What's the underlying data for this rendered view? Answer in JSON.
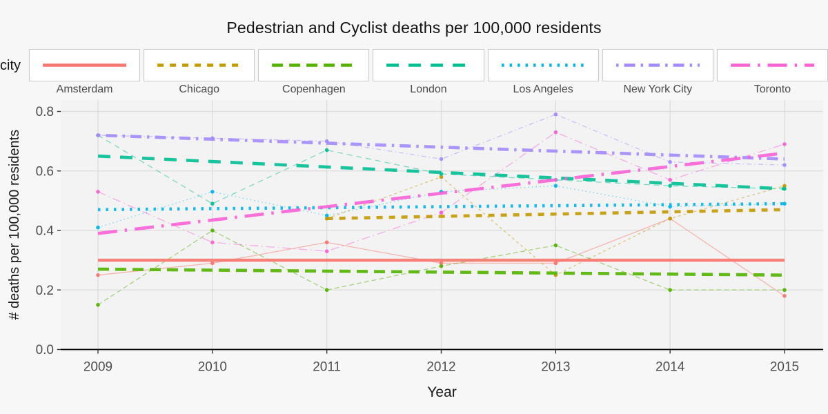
{
  "title": "Pedestrian and Cyclist deaths per 100,000 residents",
  "legend": {
    "label": "city",
    "position": "top"
  },
  "chart_data": {
    "type": "line",
    "x": [
      2009,
      2010,
      2011,
      2012,
      2013,
      2014,
      2015
    ],
    "xlabel": "Year",
    "ylabel": "# deaths per 100,000 residents",
    "ylim": [
      0.0,
      0.8
    ],
    "yticks": [
      0.0,
      0.2,
      0.4,
      0.6,
      0.8
    ],
    "ytick_labels": [
      "0.0",
      "0.2",
      "0.4",
      "0.6",
      "0.8"
    ],
    "xtick_labels": [
      "2009",
      "2010",
      "2011",
      "2012",
      "2013",
      "2014",
      "2015"
    ],
    "grid": true,
    "panel_color": "#f3f3f3",
    "grid_color": "#dcdcdc",
    "axis_line_color": "#000000",
    "tick_label_color": "#4d4d4d",
    "axis_title_color": "#1a1a1a",
    "series": [
      {
        "name": "Amsterdam",
        "color": "#F8766D",
        "linetype": "solid",
        "dash_thick": "",
        "dash_thin": "",
        "values": [
          0.25,
          0.29,
          0.36,
          0.29,
          0.29,
          0.44,
          0.18
        ],
        "trend": {
          "x": [
            2009,
            2015
          ],
          "y": [
            0.3,
            0.3
          ]
        }
      },
      {
        "name": "Chicago",
        "color": "#C49A00",
        "linetype": "dashed-short",
        "dash_thick": "9 9",
        "dash_thin": "4 4",
        "values": [
          null,
          null,
          0.44,
          0.58,
          0.25,
          0.44,
          0.55
        ],
        "trend": {
          "x": [
            2011,
            2015
          ],
          "y": [
            0.44,
            0.47
          ]
        }
      },
      {
        "name": "Copenhagen",
        "color": "#53B400",
        "linetype": "dashed-medium",
        "dash_thick": "16 9",
        "dash_thin": "7 4",
        "values": [
          0.15,
          0.4,
          0.2,
          0.28,
          0.35,
          0.2,
          0.2
        ],
        "trend": {
          "x": [
            2009,
            2015
          ],
          "y": [
            0.27,
            0.25
          ]
        }
      },
      {
        "name": "London",
        "color": "#00C094",
        "linetype": "dashed-long",
        "dash_thick": "18 14",
        "dash_thin": "8 6",
        "values": [
          0.72,
          0.49,
          0.67,
          0.59,
          0.57,
          0.55,
          0.54
        ],
        "trend": {
          "x": [
            2009,
            2015
          ],
          "y": [
            0.65,
            0.54
          ]
        }
      },
      {
        "name": "Los Angeles",
        "color": "#00B6EB",
        "linetype": "dotted",
        "dash_thick": "3.5 8",
        "dash_thin": "1.6 4",
        "values": [
          0.41,
          0.53,
          0.45,
          0.53,
          0.55,
          0.48,
          0.49
        ],
        "trend": {
          "x": [
            2009,
            2015
          ],
          "y": [
            0.47,
            0.49
          ]
        }
      },
      {
        "name": "New York City",
        "color": "#A58AFF",
        "linetype": "dash-dot",
        "dash_thick": "3.5 8 16 8",
        "dash_thin": "1.6 4 7 4",
        "values": [
          0.72,
          0.71,
          0.7,
          0.64,
          0.79,
          0.63,
          0.62
        ],
        "trend": {
          "x": [
            2009,
            2015
          ],
          "y": [
            0.72,
            0.64
          ]
        }
      },
      {
        "name": "Toronto",
        "color": "#FB61D7",
        "linetype": "longdash-dot",
        "dash_thick": "28 11 3.5 11",
        "dash_thin": "12 5 1.6 5",
        "values": [
          0.53,
          0.36,
          0.33,
          0.46,
          0.73,
          0.57,
          0.69
        ],
        "trend": {
          "x": [
            2009,
            2015
          ],
          "y": [
            0.39,
            0.66
          ]
        }
      }
    ]
  }
}
